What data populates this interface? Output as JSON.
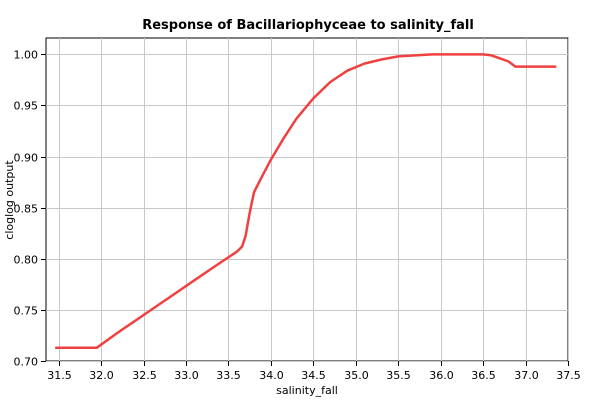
{
  "colors": {
    "curve": "#f04040"
  },
  "chart_data": {
    "type": "line",
    "title": "Response of Bacillariophyceae to salinity_fall",
    "xlabel": "salinity_fall",
    "ylabel": "cloglog output",
    "xlim": [
      31.35,
      37.5
    ],
    "ylim": [
      0.7,
      1.016
    ],
    "grid": true,
    "x_ticks": [
      {
        "value": 31.5,
        "label": "31.5"
      },
      {
        "value": 32.0,
        "label": "32.0"
      },
      {
        "value": 32.5,
        "label": "32.5"
      },
      {
        "value": 33.0,
        "label": "33.0"
      },
      {
        "value": 33.5,
        "label": "33.5"
      },
      {
        "value": 34.0,
        "label": "34.0"
      },
      {
        "value": 34.5,
        "label": "34.5"
      },
      {
        "value": 35.0,
        "label": "35.0"
      },
      {
        "value": 35.5,
        "label": "35.5"
      },
      {
        "value": 36.0,
        "label": "36.0"
      },
      {
        "value": 36.5,
        "label": "36.5"
      },
      {
        "value": 37.0,
        "label": "37.0"
      },
      {
        "value": 37.5,
        "label": "37.5"
      }
    ],
    "y_ticks": [
      {
        "value": 0.7,
        "label": "0.70"
      },
      {
        "value": 0.75,
        "label": "0.75"
      },
      {
        "value": 0.8,
        "label": "0.80"
      },
      {
        "value": 0.85,
        "label": "0.85"
      },
      {
        "value": 0.9,
        "label": "0.90"
      },
      {
        "value": 0.95,
        "label": "0.95"
      },
      {
        "value": 1.0,
        "label": "1.00"
      }
    ],
    "series": [
      {
        "x": [
          31.47,
          31.95,
          32.2,
          32.5,
          32.8,
          33.1,
          33.4,
          33.6,
          33.66,
          33.7,
          33.75,
          33.8,
          33.88,
          34.0,
          34.15,
          34.3,
          34.5,
          34.7,
          34.9,
          35.1,
          35.3,
          35.5,
          35.7,
          35.9,
          36.1,
          36.3,
          36.5,
          36.6,
          36.7,
          36.8,
          36.88,
          37.1,
          37.35
        ],
        "y": [
          0.713,
          0.713,
          0.728,
          0.745,
          0.762,
          0.779,
          0.796,
          0.807,
          0.812,
          0.822,
          0.845,
          0.865,
          0.878,
          0.897,
          0.918,
          0.937,
          0.957,
          0.973,
          0.984,
          0.991,
          0.995,
          0.998,
          0.999,
          1.0,
          1.0,
          1.0,
          1.0,
          0.999,
          0.996,
          0.993,
          0.988,
          0.988,
          0.988
        ]
      }
    ]
  }
}
